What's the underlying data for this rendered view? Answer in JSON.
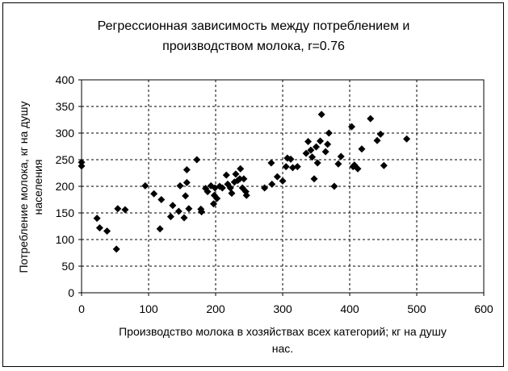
{
  "chart_data": {
    "type": "scatter",
    "title_line1": "Регрессионная зависимость между потреблением и",
    "title_line2": "производством молока, r=0.76",
    "xlabel_line1": "Производство молока в хозяйствах всех категорий; кг на душу",
    "xlabel_line2": "нас.",
    "ylabel_line1": "Потребление молока, кг на душу",
    "ylabel_line2": "населения",
    "xlim": [
      0,
      600
    ],
    "ylim": [
      0,
      400
    ],
    "xticks": [
      "0",
      "100",
      "200",
      "300",
      "400",
      "500",
      "600"
    ],
    "yticks": [
      "0",
      "50",
      "100",
      "150",
      "200",
      "250",
      "300",
      "350",
      "400"
    ],
    "grid": true,
    "grid_style": "dashed",
    "marker": "diamond",
    "marker_color": "#000000",
    "points": [
      [
        0,
        245
      ],
      [
        0,
        238
      ],
      [
        23,
        140
      ],
      [
        27,
        122
      ],
      [
        38,
        116
      ],
      [
        52,
        82
      ],
      [
        54,
        158
      ],
      [
        65,
        156
      ],
      [
        95,
        201
      ],
      [
        108,
        186
      ],
      [
        117,
        120
      ],
      [
        119,
        175
      ],
      [
        133,
        143
      ],
      [
        136,
        164
      ],
      [
        145,
        153
      ],
      [
        147,
        201
      ],
      [
        153,
        141
      ],
      [
        155,
        182
      ],
      [
        157,
        207
      ],
      [
        157,
        231
      ],
      [
        160,
        158
      ],
      [
        172,
        250
      ],
      [
        178,
        157
      ],
      [
        179,
        152
      ],
      [
        185,
        196
      ],
      [
        188,
        190
      ],
      [
        193,
        201
      ],
      [
        197,
        167
      ],
      [
        198,
        183
      ],
      [
        199,
        197
      ],
      [
        202,
        177
      ],
      [
        206,
        200
      ],
      [
        210,
        197
      ],
      [
        216,
        221
      ],
      [
        218,
        204
      ],
      [
        222,
        197
      ],
      [
        224,
        187
      ],
      [
        228,
        208
      ],
      [
        230,
        223
      ],
      [
        233,
        211
      ],
      [
        236,
        214
      ],
      [
        237,
        233
      ],
      [
        240,
        197
      ],
      [
        242,
        214
      ],
      [
        245,
        190
      ],
      [
        246,
        183
      ],
      [
        273,
        197
      ],
      [
        283,
        244
      ],
      [
        284,
        204
      ],
      [
        292,
        218
      ],
      [
        300,
        210
      ],
      [
        305,
        237
      ],
      [
        307,
        253
      ],
      [
        312,
        251
      ],
      [
        315,
        235
      ],
      [
        322,
        237
      ],
      [
        335,
        262
      ],
      [
        338,
        284
      ],
      [
        342,
        268
      ],
      [
        344,
        255
      ],
      [
        347,
        214
      ],
      [
        350,
        274
      ],
      [
        352,
        244
      ],
      [
        356,
        285
      ],
      [
        358,
        335
      ],
      [
        364,
        265
      ],
      [
        367,
        279
      ],
      [
        369,
        300
      ],
      [
        377,
        200
      ],
      [
        383,
        242
      ],
      [
        387,
        256
      ],
      [
        403,
        312
      ],
      [
        405,
        237
      ],
      [
        407,
        240
      ],
      [
        412,
        233
      ],
      [
        418,
        270
      ],
      [
        431,
        327
      ],
      [
        441,
        286
      ],
      [
        446,
        298
      ],
      [
        451,
        239
      ],
      [
        485,
        289
      ]
    ]
  }
}
